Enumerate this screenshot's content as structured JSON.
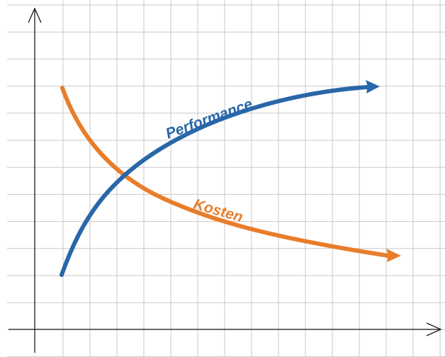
{
  "colors": {
    "performance": "#2867a8",
    "kosten": "#e87d2a",
    "grid": "#c8c8c8",
    "axis": "#1a1a1a"
  },
  "labels": {
    "performance": "Performance",
    "kosten": "Kosten"
  }
}
